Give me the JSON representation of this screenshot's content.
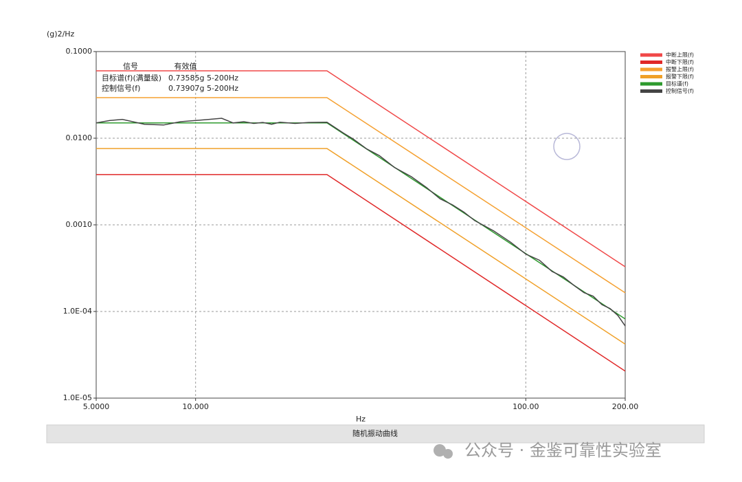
{
  "chart_data": {
    "type": "line",
    "y_label": "(g)2/Hz",
    "x_label": "Hz",
    "footer": "随机振动曲线",
    "log_x": true,
    "log_y": true,
    "grid": true,
    "legend_position": "right",
    "xlim": [
      5,
      200
    ],
    "ylim": [
      1e-05,
      0.1
    ],
    "xticks": [
      {
        "value": 5,
        "label": "5.0000"
      },
      {
        "value": 10,
        "label": "10.000"
      },
      {
        "value": 100,
        "label": "100.00"
      },
      {
        "value": 200,
        "label": "200.00"
      }
    ],
    "yticks": [
      {
        "value": 0.1,
        "label": "0.1000"
      },
      {
        "value": 0.01,
        "label": "0.0100"
      },
      {
        "value": 0.001,
        "label": "0.0010"
      },
      {
        "value": 0.0001,
        "label": "1.0E-04"
      },
      {
        "value": 1e-05,
        "label": "1.0E-05"
      }
    ],
    "info_table": {
      "header": [
        "信号",
        "有效值"
      ],
      "rows": [
        [
          "目标谱(f)(满量级)",
          "0.73585g 5-200Hz"
        ],
        [
          "控制信号(f)",
          "0.73907g 5-200Hz"
        ]
      ]
    },
    "series": [
      {
        "name": "中断上限(f)",
        "color": "#f04848",
        "x": [
          5,
          25,
          200
        ],
        "values": [
          0.06,
          0.06,
          0.000328
        ]
      },
      {
        "name": "中断下限(f)",
        "color": "#e02828",
        "x": [
          5,
          25,
          200
        ],
        "values": [
          0.0038,
          0.0038,
          2.05e-05
        ]
      },
      {
        "name": "报警上限(f)",
        "color": "#f5a030",
        "x": [
          5,
          25,
          200
        ],
        "values": [
          0.0294,
          0.0294,
          0.000164
        ]
      },
      {
        "name": "报警下限(f)",
        "color": "#f0a028",
        "x": [
          5,
          25,
          200
        ],
        "values": [
          0.0076,
          0.0076,
          4.2e-05
        ]
      },
      {
        "name": "目标谱(f)",
        "color": "#2e9b2e",
        "x": [
          5,
          25,
          200
        ],
        "values": [
          0.015,
          0.015,
          8.2e-05
        ]
      },
      {
        "name": "控制信号(f)",
        "color": "#444444",
        "x": [
          5,
          5.5,
          6,
          7,
          8,
          9,
          10,
          11,
          12,
          13,
          14,
          15,
          16,
          17,
          18,
          20,
          22,
          25,
          28,
          30,
          33,
          36,
          40,
          45,
          50,
          55,
          60,
          65,
          70,
          80,
          90,
          100,
          110,
          120,
          130,
          140,
          150,
          160,
          170,
          180,
          190,
          200
        ],
        "values": [
          0.015,
          0.016,
          0.0165,
          0.0145,
          0.0142,
          0.0155,
          0.016,
          0.0165,
          0.017,
          0.015,
          0.0155,
          0.0148,
          0.0152,
          0.0145,
          0.0153,
          0.0148,
          0.0152,
          0.0153,
          0.0115,
          0.0098,
          0.0075,
          0.0063,
          0.0046,
          0.0036,
          0.0027,
          0.002,
          0.0017,
          0.0014,
          0.00112,
          0.00085,
          0.00063,
          0.00046,
          0.00039,
          0.00029,
          0.00025,
          0.0002,
          0.000165,
          0.00015,
          0.00012,
          0.000108,
          9e-05,
          6.8e-05
        ]
      }
    ]
  },
  "watermark": "公众号 · 金鉴可靠性实验室"
}
